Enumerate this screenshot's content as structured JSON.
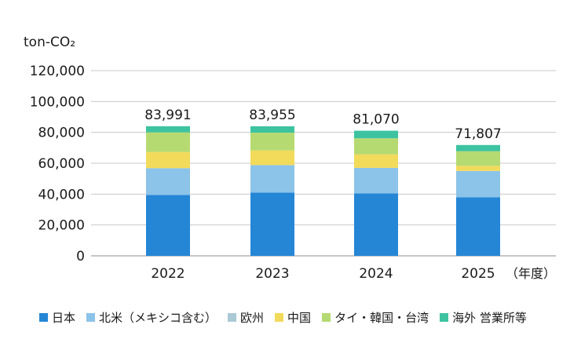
{
  "chart_data": {
    "type": "bar",
    "stacked": true,
    "unit_label": "ton-CO₂",
    "x_suffix": "（年度）",
    "categories": [
      "2022",
      "2023",
      "2024",
      "2025"
    ],
    "totals": [
      "83,991",
      "83,955",
      "81,070",
      "71,807"
    ],
    "ylim": [
      0,
      120000
    ],
    "yticks": [
      "0",
      "20,000",
      "40,000",
      "60,000",
      "80,000",
      "100,000",
      "120,000"
    ],
    "ytick_values": [
      0,
      20000,
      40000,
      60000,
      80000,
      100000,
      120000
    ],
    "grid": true,
    "legend_position": "bottom",
    "series": [
      {
        "name": "日本",
        "color": "#2586d6",
        "values": [
          39500,
          41000,
          40500,
          38000
        ]
      },
      {
        "name": "北米（メキシコ含む）",
        "color": "#8cc3e8",
        "values": [
          17300,
          17800,
          16500,
          17000
        ]
      },
      {
        "name": "欧州",
        "color": "#a9c9d4",
        "values": [
          0,
          0,
          0,
          0
        ]
      },
      {
        "name": "中国",
        "color": "#f2da5b",
        "values": [
          10500,
          9500,
          8800,
          3300
        ]
      },
      {
        "name": "タイ・韓国・台湾",
        "color": "#b6da72",
        "values": [
          12700,
          11500,
          10370,
          9500
        ]
      },
      {
        "name": "海外 営業所等",
        "color": "#3dc3a0",
        "values": [
          3991,
          4155,
          4900,
          4007
        ]
      }
    ]
  }
}
